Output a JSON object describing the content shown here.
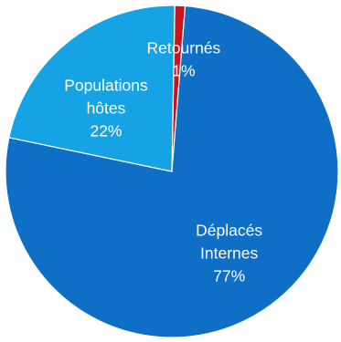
{
  "chart_data": {
    "type": "pie",
    "slices": [
      {
        "name": "Déplacés Internes",
        "label_lines": [
          "Déplacés",
          "Internes"
        ],
        "value": 77,
        "value_label": "77%",
        "color": "#0f6fc6"
      },
      {
        "name": "Populations hôtes",
        "label_lines": [
          "Populations",
          "hôtes"
        ],
        "value": 22,
        "value_label": "22%",
        "color": "#15a3e6"
      },
      {
        "name": "Retournés",
        "label_lines": [
          "Retournés"
        ],
        "value": 1,
        "value_label": "1%",
        "color": "#c4161c"
      }
    ]
  }
}
